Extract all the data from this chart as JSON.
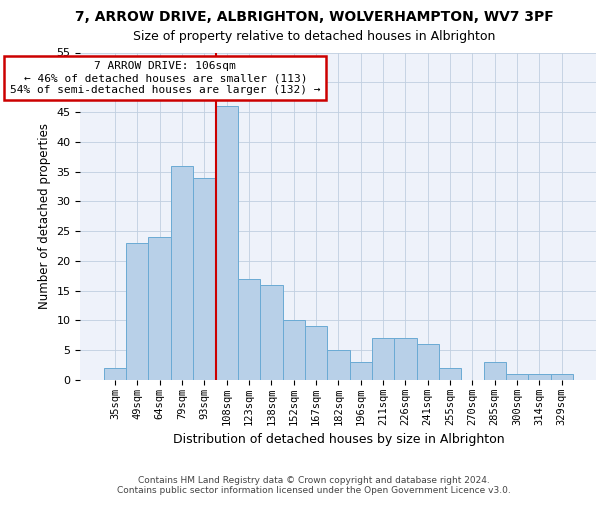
{
  "title1": "7, ARROW DRIVE, ALBRIGHTON, WOLVERHAMPTON, WV7 3PF",
  "title2": "Size of property relative to detached houses in Albrighton",
  "xlabel": "Distribution of detached houses by size in Albrighton",
  "ylabel": "Number of detached properties",
  "categories": [
    "35sqm",
    "49sqm",
    "64sqm",
    "79sqm",
    "93sqm",
    "108sqm",
    "123sqm",
    "138sqm",
    "152sqm",
    "167sqm",
    "182sqm",
    "196sqm",
    "211sqm",
    "226sqm",
    "241sqm",
    "255sqm",
    "270sqm",
    "285sqm",
    "300sqm",
    "314sqm",
    "329sqm"
  ],
  "values": [
    2,
    23,
    24,
    36,
    34,
    46,
    17,
    16,
    10,
    9,
    5,
    3,
    7,
    7,
    6,
    2,
    0,
    3,
    1,
    1,
    1
  ],
  "bar_color": "#b8d0e8",
  "bar_edge_color": "#6aaad4",
  "vline_x": 4.5,
  "vline_color": "#cc0000",
  "annotation_line1": "7 ARROW DRIVE: 106sqm",
  "annotation_line2": "← 46% of detached houses are smaller (113)",
  "annotation_line3": "54% of semi-detached houses are larger (132) →",
  "annotation_box_color": "#ffffff",
  "annotation_box_edge": "#cc0000",
  "footer1": "Contains HM Land Registry data © Crown copyright and database right 2024.",
  "footer2": "Contains public sector information licensed under the Open Government Licence v3.0.",
  "background_color": "#eef2fa",
  "ylim": [
    0,
    55
  ],
  "yticks": [
    0,
    5,
    10,
    15,
    20,
    25,
    30,
    35,
    40,
    45,
    50,
    55
  ]
}
